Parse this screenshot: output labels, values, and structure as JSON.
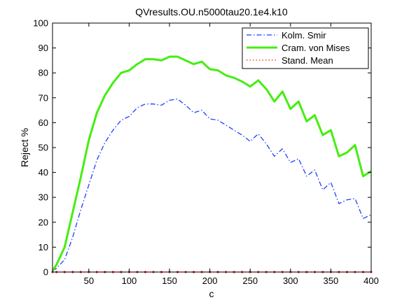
{
  "chart_data": {
    "type": "line",
    "title": "QVresults.OU.n5000tau20.1e4.k10",
    "xlabel": "c",
    "ylabel": "Reject %",
    "xlim": [
      5,
      400
    ],
    "ylim": [
      0,
      100
    ],
    "xticks": [
      50,
      100,
      150,
      200,
      250,
      300,
      350,
      400
    ],
    "yticks": [
      0,
      10,
      20,
      30,
      40,
      50,
      60,
      70,
      80,
      90,
      100
    ],
    "grid": false,
    "legend_position": "top-right",
    "x": [
      5,
      10,
      20,
      30,
      40,
      50,
      60,
      70,
      80,
      90,
      100,
      110,
      120,
      130,
      140,
      150,
      160,
      170,
      180,
      190,
      200,
      210,
      220,
      230,
      240,
      250,
      260,
      270,
      280,
      290,
      300,
      310,
      320,
      330,
      340,
      350,
      360,
      370,
      380,
      390,
      400
    ],
    "series": [
      {
        "name": "Kolm. Smir",
        "color": "#1f3fff",
        "style": "dashdot",
        "values": [
          0.5,
          1.5,
          5,
          14,
          25,
          35,
          45,
          52,
          57,
          61,
          62.5,
          66,
          67.5,
          67.5,
          67,
          69,
          69.5,
          67,
          64,
          65,
          61.5,
          61,
          59,
          57,
          55,
          52.5,
          55.5,
          51.5,
          46.5,
          49.5,
          44,
          45.5,
          38.5,
          41,
          33,
          36,
          27.5,
          29,
          29.5,
          21.5,
          23
        ]
      },
      {
        "name": "Cram. von Mises",
        "color": "#44ee11",
        "style": "solid",
        "values": [
          0.5,
          3,
          10,
          24,
          38,
          53,
          64,
          71,
          76,
          80,
          81,
          83.5,
          85.5,
          85.5,
          85,
          86.5,
          86.5,
          85,
          83.5,
          84.5,
          81.5,
          81,
          79,
          78,
          76.5,
          74.5,
          77,
          73.5,
          68.5,
          72.5,
          65.5,
          68.5,
          60.5,
          63,
          55,
          57,
          46.5,
          48,
          51,
          38.5,
          40.5
        ]
      },
      {
        "name": "Stand. Mean",
        "color": "#ee2222",
        "style": "dotted",
        "values": [
          0,
          0,
          0,
          0,
          0,
          0,
          0,
          0,
          0,
          0,
          0,
          0,
          0,
          0,
          0,
          0,
          0,
          0,
          0,
          0,
          0,
          0,
          0,
          0,
          0,
          0,
          0,
          0,
          0,
          0,
          0,
          0,
          0,
          0,
          0,
          0,
          0,
          0,
          0,
          0,
          0
        ]
      }
    ]
  }
}
